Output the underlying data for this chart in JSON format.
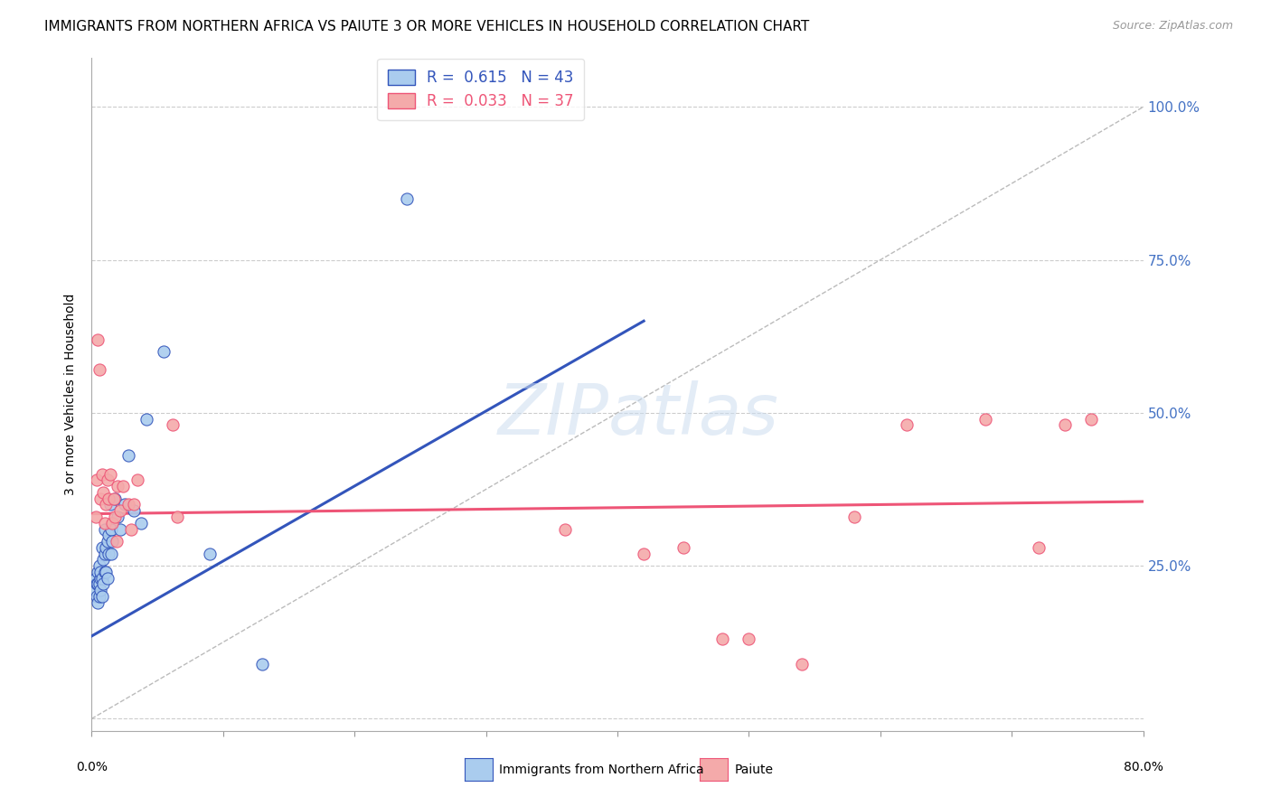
{
  "title": "IMMIGRANTS FROM NORTHERN AFRICA VS PAIUTE 3 OR MORE VEHICLES IN HOUSEHOLD CORRELATION CHART",
  "source": "Source: ZipAtlas.com",
  "ylabel": "3 or more Vehicles in Household",
  "xlim": [
    0.0,
    0.8
  ],
  "ylim": [
    -0.02,
    1.08
  ],
  "legend_r1": "R =  0.615   N = 43",
  "legend_r2": "R =  0.033   N = 37",
  "color_blue": "#aaccee",
  "color_pink": "#f4aaaa",
  "color_blue_line": "#3355bb",
  "color_pink_line": "#ee5577",
  "color_diag": "#bbbbbb",
  "watermark": "ZIPatlas",
  "blue_scatter_x": [
    0.002,
    0.003,
    0.004,
    0.004,
    0.005,
    0.005,
    0.005,
    0.006,
    0.006,
    0.006,
    0.007,
    0.007,
    0.007,
    0.008,
    0.008,
    0.008,
    0.009,
    0.009,
    0.01,
    0.01,
    0.01,
    0.011,
    0.011,
    0.012,
    0.012,
    0.013,
    0.013,
    0.014,
    0.015,
    0.015,
    0.016,
    0.018,
    0.02,
    0.022,
    0.025,
    0.028,
    0.032,
    0.038,
    0.042,
    0.055,
    0.09,
    0.13,
    0.24
  ],
  "blue_scatter_y": [
    0.21,
    0.23,
    0.2,
    0.22,
    0.19,
    0.22,
    0.24,
    0.2,
    0.22,
    0.25,
    0.21,
    0.23,
    0.24,
    0.2,
    0.23,
    0.28,
    0.22,
    0.26,
    0.24,
    0.27,
    0.31,
    0.24,
    0.28,
    0.23,
    0.29,
    0.27,
    0.3,
    0.35,
    0.27,
    0.31,
    0.29,
    0.36,
    0.33,
    0.31,
    0.35,
    0.43,
    0.34,
    0.32,
    0.49,
    0.6,
    0.27,
    0.09,
    0.85
  ],
  "pink_scatter_x": [
    0.003,
    0.004,
    0.005,
    0.006,
    0.007,
    0.008,
    0.009,
    0.01,
    0.011,
    0.012,
    0.013,
    0.014,
    0.016,
    0.017,
    0.018,
    0.019,
    0.02,
    0.022,
    0.024,
    0.028,
    0.03,
    0.032,
    0.035,
    0.062,
    0.065,
    0.36,
    0.42,
    0.45,
    0.48,
    0.5,
    0.54,
    0.58,
    0.62,
    0.68,
    0.72,
    0.74,
    0.76
  ],
  "pink_scatter_y": [
    0.33,
    0.39,
    0.62,
    0.57,
    0.36,
    0.4,
    0.37,
    0.32,
    0.35,
    0.39,
    0.36,
    0.4,
    0.32,
    0.36,
    0.33,
    0.29,
    0.38,
    0.34,
    0.38,
    0.35,
    0.31,
    0.35,
    0.39,
    0.48,
    0.33,
    0.31,
    0.27,
    0.28,
    0.13,
    0.13,
    0.09,
    0.33,
    0.48,
    0.49,
    0.28,
    0.48,
    0.49
  ],
  "blue_line_x": [
    0.0,
    0.42
  ],
  "blue_line_y": [
    0.135,
    0.65
  ],
  "pink_line_x": [
    0.0,
    0.8
  ],
  "pink_line_y": [
    0.335,
    0.355
  ],
  "diag_line_x": [
    0.0,
    0.8
  ],
  "diag_line_y": [
    0.0,
    1.0
  ],
  "grid_color": "#cccccc",
  "tick_color_right": "#4472c4",
  "background_color": "#ffffff"
}
